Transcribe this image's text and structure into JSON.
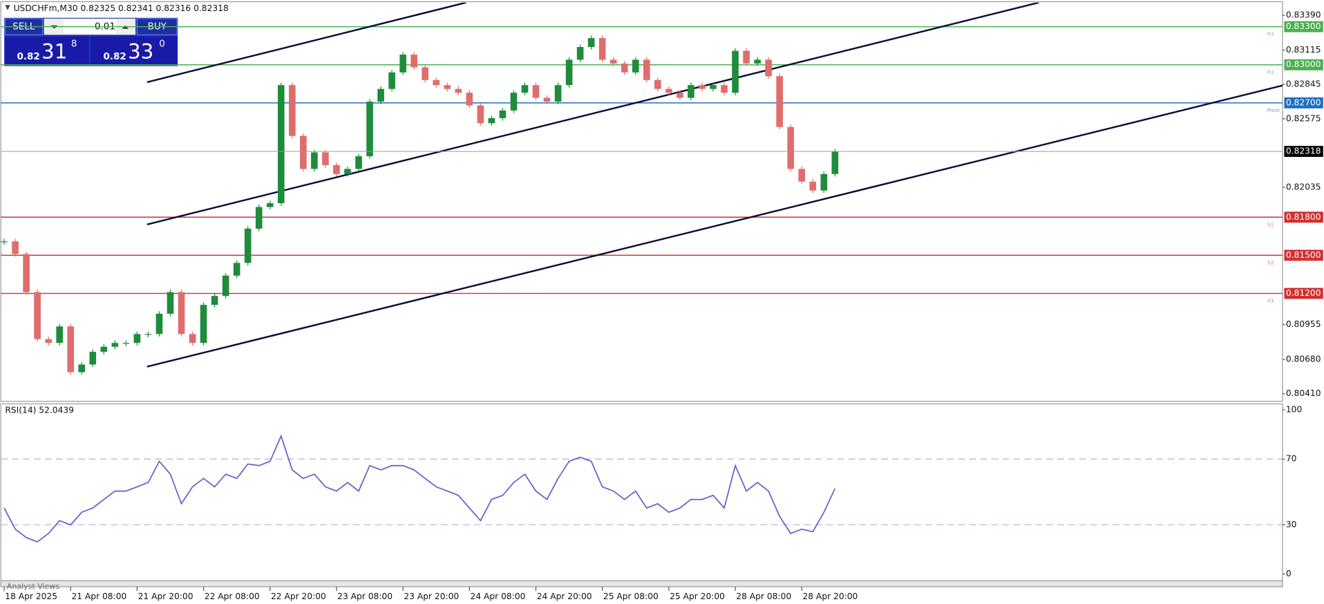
{
  "header": "USDCHFm,M30  0.82325 0.82341 0.82316 0.82318",
  "trade_panel": {
    "sell": "SELL",
    "buy": "BUY",
    "lot": "0.01",
    "bid": {
      "big": "0.82",
      "main": "31",
      "pip": "8"
    },
    "ask": {
      "big": "0.82",
      "main": "33",
      "pip": "0"
    }
  },
  "footer": "Analyst Views",
  "chart_data": [
    {
      "type": "candlestick",
      "up_color": "#1e8c3a",
      "down_color": "#e06c6c",
      "x": [
        0,
        1,
        2,
        3,
        4,
        5,
        6,
        7,
        8,
        9,
        10,
        11,
        12,
        13,
        14,
        15,
        16,
        17,
        18,
        19,
        20,
        21,
        22,
        23,
        24,
        25,
        26,
        27,
        28,
        29,
        30,
        31,
        32,
        33,
        34,
        35,
        36,
        37,
        38,
        39,
        40,
        41,
        42,
        43,
        44,
        45,
        46,
        47,
        48,
        49,
        50,
        51,
        52,
        53,
        54,
        55,
        56,
        57,
        58,
        59,
        60,
        61,
        62,
        63,
        64,
        65,
        66,
        67,
        68,
        69,
        70,
        71,
        72,
        73,
        74,
        75
      ],
      "values": [
        0.8161,
        0.8151,
        0.8121,
        0.8084,
        0.8081,
        0.8094,
        0.8058,
        0.8064,
        0.8074,
        0.8078,
        0.8081,
        0.8081,
        0.8088,
        0.8088,
        0.8104,
        0.8121,
        0.8088,
        0.8081,
        0.8111,
        0.8118,
        0.8134,
        0.8144,
        0.8171,
        0.8188,
        0.8191,
        0.8284,
        0.8244,
        0.8218,
        0.8231,
        0.8221,
        0.8214,
        0.8218,
        0.8228,
        0.8271,
        0.8281,
        0.8294,
        0.8308,
        0.8298,
        0.8288,
        0.8284,
        0.8281,
        0.8278,
        0.8268,
        0.8254,
        0.8258,
        0.8264,
        0.8278,
        0.8284,
        0.8274,
        0.8271,
        0.8284,
        0.8304,
        0.8314,
        0.8321,
        0.8304,
        0.8301,
        0.8294,
        0.8304,
        0.8288,
        0.8281,
        0.8278,
        0.8274,
        0.8284,
        0.8281,
        0.8284,
        0.8278,
        0.8311,
        0.8301,
        0.8304,
        0.8291,
        0.8251,
        0.8218,
        0.8208,
        0.8201,
        0.8214,
        0.82318
      ],
      "xlim": [
        -0.3,
        115.4
      ],
      "ylim": [
        0.80357,
        0.8349
      ],
      "xticks": [
        {
          "value": 0,
          "label": "18 Apr 2025"
        },
        {
          "value": 6,
          "label": "21 Apr 08:00"
        },
        {
          "value": 12,
          "label": "21 Apr 20:00"
        },
        {
          "value": 18,
          "label": "22 Apr 08:00"
        },
        {
          "value": 24,
          "label": "22 Apr 20:00"
        },
        {
          "value": 30,
          "label": "23 Apr 08:00"
        },
        {
          "value": 36,
          "label": "23 Apr 20:00"
        },
        {
          "value": 42,
          "label": "24 Apr 08:00"
        },
        {
          "value": 48,
          "label": "24 Apr 20:00"
        },
        {
          "value": 54,
          "label": "25 Apr 08:00"
        },
        {
          "value": 60,
          "label": "25 Apr 20:00"
        },
        {
          "value": 66,
          "label": "28 Apr 08:00"
        },
        {
          "value": 72,
          "label": "28 Apr 20:00"
        }
      ],
      "yticks": [
        {
          "value": 0.8339,
          "label": "0.83390"
        },
        {
          "value": 0.83115,
          "label": "0.83115"
        },
        {
          "value": 0.82845,
          "label": "0.82845"
        },
        {
          "value": 0.82575,
          "label": "0.82575"
        },
        {
          "value": 0.82035,
          "label": "0.82035"
        },
        {
          "value": 0.80955,
          "label": "0.80955"
        },
        {
          "value": 0.8068,
          "label": "0.80680"
        },
        {
          "value": 0.8041,
          "label": "0.80410"
        }
      ],
      "current_color": "#000000",
      "levels": [
        {
          "value": 0.833,
          "label": "0.83300",
          "name": "R3",
          "color": "#4caf50"
        },
        {
          "value": 0.83,
          "label": "0.83000",
          "name": "R2",
          "color": "#4caf50"
        },
        {
          "value": 0.827,
          "label": "0.82700",
          "name": "Pivot",
          "color": "#1e6fc0"
        },
        {
          "value": 0.818,
          "label": "0.81800",
          "name": "S1",
          "color": "#d32f2f"
        },
        {
          "value": 0.815,
          "label": "0.81500",
          "name": "S2",
          "color": "#d32f2f"
        },
        {
          "value": 0.812,
          "label": "0.81200",
          "name": "S3",
          "color": "#d32f2f"
        }
      ],
      "trendline_color": "#0c0c3a",
      "trendlines": [
        {
          "x": [
            12.9,
            41.7
          ],
          "y": [
            0.82863,
            0.8349
          ]
        },
        {
          "x": [
            12.9,
            93.4
          ],
          "y": [
            0.81743,
            0.8349
          ]
        },
        {
          "x": [
            12.9,
            115.4
          ],
          "y": [
            0.80623,
            0.82837
          ]
        }
      ]
    },
    {
      "type": "line",
      "title": "RSI(14) 52.0439",
      "color": "#6a5acd",
      "values": [
        40.2,
        27.3,
        22.2,
        19.6,
        24.7,
        32.5,
        29.9,
        37.6,
        40.2,
        45.4,
        50.5,
        50.5,
        53.1,
        55.7,
        68.6,
        60.8,
        42.8,
        53.1,
        58.2,
        53.1,
        60.8,
        58.2,
        67.0,
        66.0,
        68.6,
        84.0,
        63.4,
        58.2,
        60.8,
        53.1,
        50.5,
        55.7,
        50.5,
        66.0,
        63.4,
        66.0,
        66.0,
        63.4,
        58.2,
        53.1,
        50.5,
        47.9,
        40.2,
        32.5,
        45.4,
        47.9,
        55.7,
        60.8,
        50.5,
        45.4,
        58.2,
        68.6,
        71.1,
        68.6,
        53.1,
        50.5,
        45.4,
        50.5,
        40.2,
        42.8,
        37.6,
        40.2,
        45.4,
        45.4,
        47.9,
        40.2,
        66.0,
        50.5,
        55.7,
        50.5,
        35.1,
        24.7,
        27.3,
        25.8,
        37.6,
        52.04
      ],
      "ylim": [
        0,
        100
      ],
      "yticks": [
        100,
        70,
        30,
        0
      ],
      "levels": [
        70,
        30
      ],
      "level_color": "#c9a6d9"
    }
  ]
}
